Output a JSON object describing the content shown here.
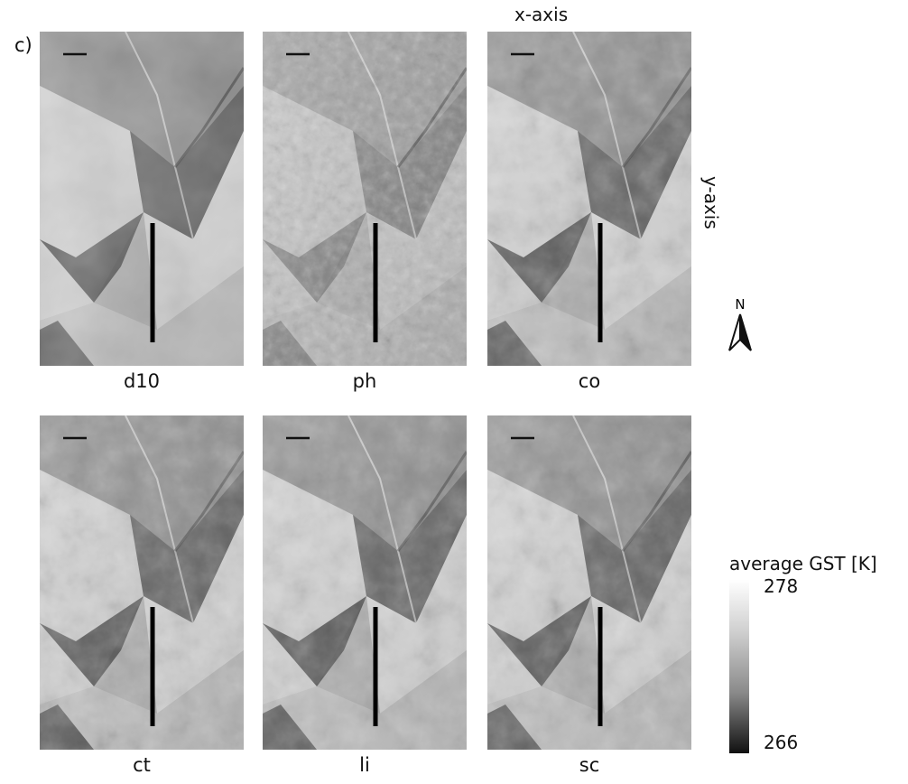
{
  "figure": {
    "label": "c)",
    "x_axis_label": "x-axis",
    "y_axis_label": "y-axis",
    "north_symbol": "N"
  },
  "panels": [
    {
      "label": "d10",
      "style": "smooth"
    },
    {
      "label": "ph",
      "style": "flat-noisy"
    },
    {
      "label": "co",
      "style": "textured"
    },
    {
      "label": "ct",
      "style": "textured"
    },
    {
      "label": "li",
      "style": "textured"
    },
    {
      "label": "sc",
      "style": "textured"
    }
  ],
  "legend": {
    "title": "average GST  [K]",
    "max": "278",
    "min": "266",
    "colors": [
      "#ffffff",
      "#101010"
    ]
  }
}
